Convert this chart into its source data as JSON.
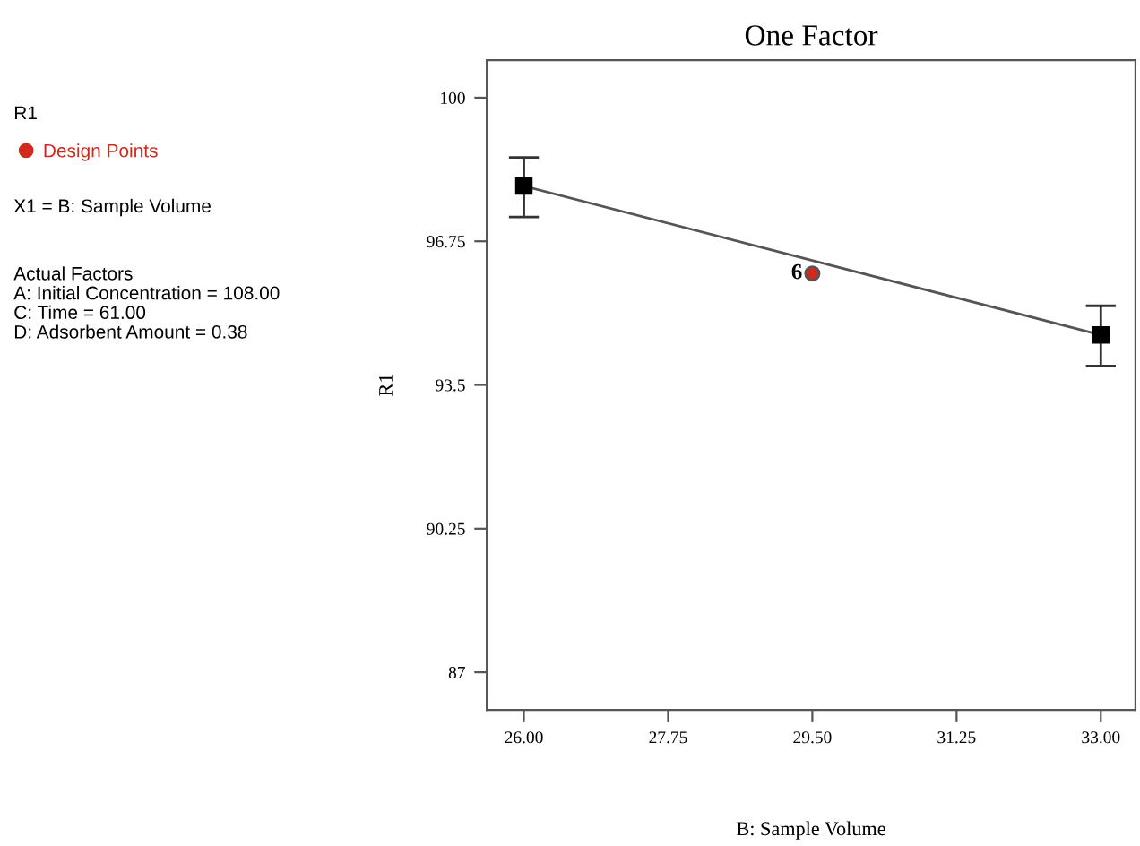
{
  "chart_data": {
    "type": "line",
    "title": "One Factor",
    "xlabel": "B: Sample Volume",
    "ylabel": "R1",
    "annotations": [
      "R1",
      "X1 = B: Sample Volume",
      "Actual Factors\nA: Initial Concentration = 108.00\nC: Time = 61.00\nD: Adsorbent Amount = 0.38",
      {
        "text": "6",
        "x": 29.5,
        "y": 96.02
      }
    ],
    "series": [
      {
        "color": "#000000",
        "x": [
          26,
          33
        ],
        "values": [
          98.0,
          94.63
        ],
        "errors": [
          [
            97.3,
            98.65
          ],
          [
            93.93,
            95.29
          ]
        ],
        "marker": "square"
      },
      {
        "type": "scatter",
        "name": "Design Points",
        "color": "#d02a1e",
        "x": [
          29.5
        ],
        "values": [
          96.02
        ],
        "marker": "circle"
      }
    ],
    "xlim": [
      25.55,
      33.42
    ],
    "ylim": [
      86.15,
      100.85
    ],
    "xticks": [
      {
        "value": 26,
        "label": "26.00"
      },
      {
        "value": 27.75,
        "label": "27.75"
      },
      {
        "value": 29.5,
        "label": "29.50"
      },
      {
        "value": 31.25,
        "label": "31.25"
      },
      {
        "value": 33,
        "label": "33.00"
      }
    ],
    "yticks": [
      87,
      90.25,
      93.5,
      96.75,
      100
    ],
    "grid": false,
    "legend": "left"
  }
}
